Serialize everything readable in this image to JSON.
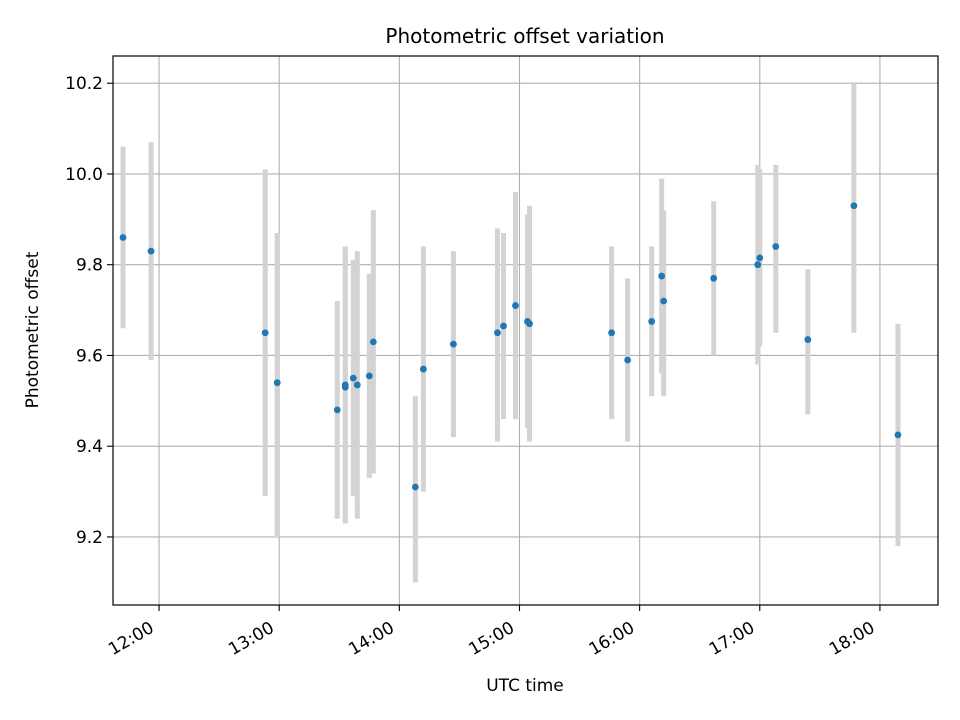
{
  "chart_data": {
    "type": "scatter",
    "title": "Photometric offset variation",
    "xlabel": "UTC time",
    "ylabel": "Photometric offset",
    "xlim": [
      "11:37",
      "18:29"
    ],
    "ylim": [
      9.05,
      10.26
    ],
    "x_ticks": [
      "12:00",
      "13:00",
      "14:00",
      "15:00",
      "16:00",
      "17:00",
      "18:00"
    ],
    "y_ticks": [
      9.2,
      9.4,
      9.6,
      9.8,
      10.0,
      10.2
    ],
    "grid": true,
    "colors": {
      "point": "#1f77b4",
      "errorbar": "#d3d3d3",
      "grid": "#b0b0b0"
    },
    "points": [
      {
        "x": "11:42",
        "y": 9.86,
        "ylow": 9.66,
        "yhigh": 10.06
      },
      {
        "x": "11:56",
        "y": 9.83,
        "ylow": 9.59,
        "yhigh": 10.07
      },
      {
        "x": "12:53",
        "y": 9.65,
        "ylow": 9.29,
        "yhigh": 10.01
      },
      {
        "x": "12:59",
        "y": 9.54,
        "ylow": 9.2,
        "yhigh": 9.87
      },
      {
        "x": "13:29",
        "y": 9.48,
        "ylow": 9.24,
        "yhigh": 9.72
      },
      {
        "x": "13:33",
        "y": 9.53,
        "ylow": 9.23,
        "yhigh": 9.84
      },
      {
        "x": "13:33",
        "y": 9.535,
        "ylow": 9.23,
        "yhigh": 9.84
      },
      {
        "x": "13:37",
        "y": 9.55,
        "ylow": 9.29,
        "yhigh": 9.81
      },
      {
        "x": "13:39",
        "y": 9.535,
        "ylow": 9.24,
        "yhigh": 9.83
      },
      {
        "x": "13:45",
        "y": 9.555,
        "ylow": 9.33,
        "yhigh": 9.78
      },
      {
        "x": "13:47",
        "y": 9.63,
        "ylow": 9.34,
        "yhigh": 9.92
      },
      {
        "x": "14:08",
        "y": 9.31,
        "ylow": 9.1,
        "yhigh": 9.51
      },
      {
        "x": "14:12",
        "y": 9.57,
        "ylow": 9.3,
        "yhigh": 9.84
      },
      {
        "x": "14:27",
        "y": 9.625,
        "ylow": 9.42,
        "yhigh": 9.83
      },
      {
        "x": "14:49",
        "y": 9.65,
        "ylow": 9.41,
        "yhigh": 9.88
      },
      {
        "x": "14:52",
        "y": 9.665,
        "ylow": 9.46,
        "yhigh": 9.87
      },
      {
        "x": "14:58",
        "y": 9.71,
        "ylow": 9.46,
        "yhigh": 9.96
      },
      {
        "x": "15:04",
        "y": 9.675,
        "ylow": 9.44,
        "yhigh": 9.91
      },
      {
        "x": "15:05",
        "y": 9.67,
        "ylow": 9.41,
        "yhigh": 9.93
      },
      {
        "x": "15:46",
        "y": 9.65,
        "ylow": 9.46,
        "yhigh": 9.84
      },
      {
        "x": "15:54",
        "y": 9.59,
        "ylow": 9.41,
        "yhigh": 9.77
      },
      {
        "x": "16:06",
        "y": 9.675,
        "ylow": 9.51,
        "yhigh": 9.84
      },
      {
        "x": "16:11",
        "y": 9.775,
        "ylow": 9.56,
        "yhigh": 9.99
      },
      {
        "x": "16:12",
        "y": 9.72,
        "ylow": 9.51,
        "yhigh": 9.92
      },
      {
        "x": "16:37",
        "y": 9.77,
        "ylow": 9.6,
        "yhigh": 9.94
      },
      {
        "x": "16:59",
        "y": 9.8,
        "ylow": 9.58,
        "yhigh": 10.02
      },
      {
        "x": "17:00",
        "y": 9.815,
        "ylow": 9.62,
        "yhigh": 10.01
      },
      {
        "x": "17:08",
        "y": 9.84,
        "ylow": 9.65,
        "yhigh": 10.02
      },
      {
        "x": "17:24",
        "y": 9.635,
        "ylow": 9.47,
        "yhigh": 9.79
      },
      {
        "x": "17:47",
        "y": 9.93,
        "ylow": 9.65,
        "yhigh": 10.2
      },
      {
        "x": "18:09",
        "y": 9.425,
        "ylow": 9.18,
        "yhigh": 9.67
      }
    ]
  }
}
